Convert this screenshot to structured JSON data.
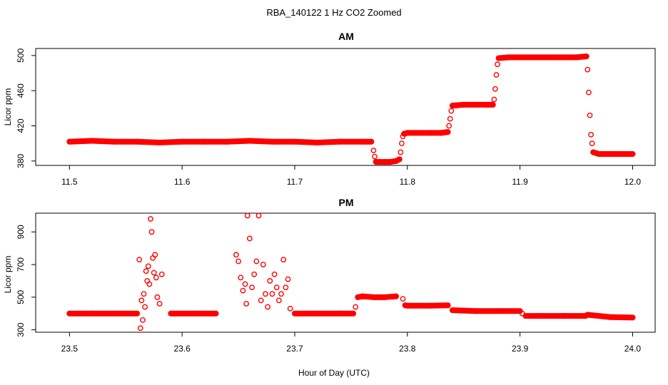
{
  "figure": {
    "title": "RBA_140122  1 Hz CO2 Zoomed",
    "xlabel": "Hour of Day (UTC)"
  },
  "colors": {
    "points": "#ff0000",
    "axis": "#000000",
    "background": "#ffffff"
  },
  "chart_data": [
    {
      "type": "scatter",
      "title": "AM",
      "xlabel": "Hour of Day (UTC)",
      "ylabel": "Licor ppm",
      "xlim": [
        11.47,
        12.02
      ],
      "ylim": [
        375,
        508
      ],
      "xticks": [
        11.5,
        11.6,
        11.7,
        11.8,
        11.9,
        12.0
      ],
      "xtick_labels": [
        "11.5",
        "11.6",
        "11.7",
        "11.8",
        "11.9",
        "12.0"
      ],
      "yticks": [
        380,
        420,
        460,
        500
      ],
      "ytick_labels": [
        "380",
        "420",
        "460",
        "500"
      ],
      "series": [
        {
          "name": "CO2",
          "marker": "open-circle",
          "x": [
            11.5,
            11.52,
            11.54,
            11.56,
            11.58,
            11.6,
            11.62,
            11.64,
            11.66,
            11.68,
            11.7,
            11.72,
            11.74,
            11.76,
            11.768,
            11.77,
            11.771,
            11.772,
            11.775,
            11.78,
            11.785,
            11.79,
            11.793,
            11.794,
            11.795,
            11.796,
            11.797,
            11.8,
            11.81,
            11.82,
            11.83,
            11.836,
            11.837,
            11.838,
            11.839,
            11.84,
            11.85,
            11.86,
            11.87,
            11.876,
            11.877,
            11.878,
            11.879,
            11.88,
            11.881,
            11.89,
            11.9,
            11.91,
            11.92,
            11.93,
            11.94,
            11.95,
            11.959,
            11.96,
            11.961,
            11.962,
            11.963,
            11.964,
            11.965,
            11.97,
            11.98,
            11.99,
            12.0
          ],
          "y": [
            402,
            403,
            402,
            402,
            401,
            402,
            402,
            402,
            403,
            402,
            402,
            401,
            402,
            402,
            402,
            392,
            385,
            379,
            379,
            379,
            379,
            380,
            382,
            390,
            400,
            408,
            411,
            412,
            412,
            412,
            412,
            413,
            420,
            428,
            437,
            443,
            444,
            444,
            444,
            444,
            450,
            462,
            478,
            490,
            497,
            498,
            498,
            498,
            498,
            498,
            498,
            498,
            499,
            484,
            458,
            432,
            410,
            400,
            390,
            388,
            388,
            388,
            388
          ]
        }
      ]
    },
    {
      "type": "scatter",
      "title": "PM",
      "xlabel": "Hour of Day (UTC)",
      "ylabel": "Licor ppm",
      "xlim": [
        23.47,
        24.02
      ],
      "ylim": [
        285,
        1015
      ],
      "xticks": [
        23.5,
        23.6,
        23.7,
        23.8,
        23.9,
        24.0
      ],
      "xtick_labels": [
        "23.5",
        "23.6",
        "23.7",
        "23.8",
        "23.9",
        "24.0"
      ],
      "yticks": [
        300,
        500,
        700,
        900
      ],
      "ytick_labels": [
        "300",
        "500",
        "700",
        "900"
      ],
      "series": [
        {
          "name": "CO2",
          "marker": "open-circle",
          "x": [
            23.5,
            23.52,
            23.54,
            23.56,
            23.562,
            23.563,
            23.564,
            23.565,
            23.566,
            23.567,
            23.568,
            23.569,
            23.57,
            23.571,
            23.572,
            23.573,
            23.574,
            23.575,
            23.576,
            23.577,
            23.578,
            23.58,
            23.582,
            23.59,
            23.61,
            23.63,
            23.648,
            23.65,
            23.652,
            23.654,
            23.656,
            23.657,
            23.658,
            23.66,
            23.662,
            23.664,
            23.666,
            23.668,
            23.67,
            23.672,
            23.674,
            23.676,
            23.678,
            23.68,
            23.682,
            23.684,
            23.686,
            23.688,
            23.69,
            23.692,
            23.694,
            23.696,
            23.7,
            23.72,
            23.74,
            23.752,
            23.754,
            23.756,
            23.76,
            23.77,
            23.78,
            23.79,
            23.796,
            23.798,
            23.8,
            23.82,
            23.836,
            23.84,
            23.86,
            23.88,
            23.9,
            23.902,
            23.905,
            23.92,
            23.94,
            23.958,
            23.96,
            23.98,
            24.0
          ],
          "y": [
            400,
            400,
            400,
            400,
            730,
            310,
            480,
            360,
            520,
            440,
            660,
            600,
            690,
            580,
            980,
            900,
            740,
            650,
            760,
            620,
            500,
            460,
            640,
            400,
            400,
            400,
            760,
            720,
            620,
            540,
            580,
            460,
            1000,
            860,
            560,
            640,
            720,
            1000,
            480,
            700,
            520,
            440,
            600,
            520,
            640,
            560,
            480,
            520,
            730,
            560,
            610,
            430,
            400,
            400,
            400,
            400,
            440,
            500,
            505,
            500,
            500,
            505,
            490,
            450,
            448,
            448,
            450,
            420,
            415,
            415,
            415,
            400,
            385,
            385,
            385,
            385,
            392,
            378,
            375
          ]
        }
      ]
    }
  ]
}
